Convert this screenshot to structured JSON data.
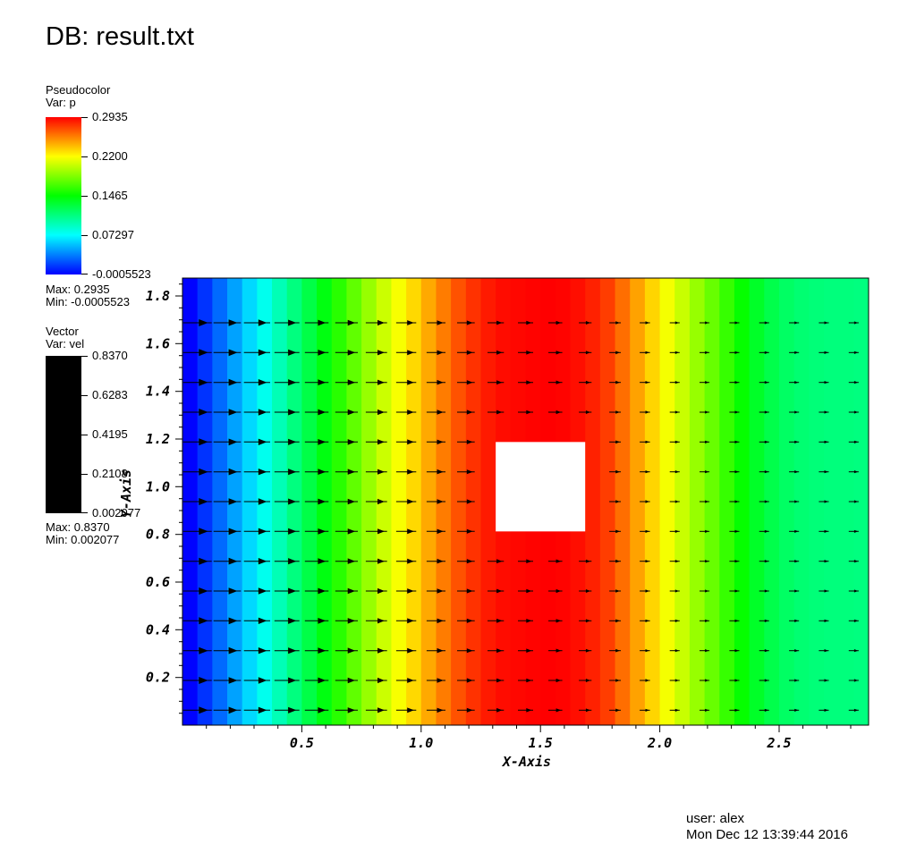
{
  "header": {
    "db_title": "DB: result.txt"
  },
  "pseudocolor_legend": {
    "plot_type": "Pseudocolor",
    "var_label": "Var: p",
    "tick_labels": [
      "0.2935",
      "0.2200",
      "0.1465",
      "0.07297",
      "-0.0005523"
    ],
    "max_label": "Max:  0.2935",
    "min_label": "Min: -0.0005523",
    "colormap": "hot"
  },
  "vector_legend": {
    "plot_type": "Vector",
    "var_label": "Var: vel",
    "tick_labels": [
      "0.8370",
      "0.6283",
      "0.4195",
      "0.2108",
      "0.002077"
    ],
    "max_label": "Max:  0.8370",
    "min_label": "Min:  0.002077",
    "bar_color": "#000000"
  },
  "footer": {
    "user": "user: alex",
    "date": "Mon Dec 12 13:39:44 2016"
  },
  "chart_data": {
    "type": "heatmap",
    "title": "",
    "xlabel": "X-Axis",
    "ylabel": "Y-Axis",
    "xlim": [
      0,
      2.875
    ],
    "ylim": [
      0,
      1.875
    ],
    "xticks": [
      0.5,
      1.0,
      1.5,
      2.0,
      2.5
    ],
    "xtick_labels": [
      "0.5",
      "1.0",
      "1.5",
      "2.0",
      "2.5"
    ],
    "yticks": [
      0.2,
      0.4,
      0.6,
      0.8,
      1.0,
      1.2,
      1.4,
      1.6,
      1.8
    ],
    "ytick_labels": [
      "0.2",
      "0.4",
      "0.6",
      "0.8",
      "1.0",
      "1.2",
      "1.4",
      "1.6",
      "1.8"
    ],
    "x_minor_step": 0.1,
    "y_minor_step": 0.05,
    "colorbar_range": [
      -0.0005523,
      0.2935
    ],
    "p_band_step": 0.125,
    "p_columns": [
      0.0,
      0.014,
      0.03,
      0.046,
      0.062,
      0.078,
      0.094,
      0.11,
      0.126,
      0.142,
      0.158,
      0.174,
      0.19,
      0.205,
      0.218,
      0.231,
      0.245,
      0.258,
      0.27,
      0.279,
      0.286,
      0.29,
      0.2915,
      0.2925,
      0.2935,
      0.2925,
      0.2895,
      0.284,
      0.276,
      0.262,
      0.247,
      0.232,
      0.217,
      0.204,
      0.19,
      0.176,
      0.162,
      0.148,
      0.135,
      0.125,
      0.118,
      0.114,
      0.112,
      0.111,
      0.111,
      0.11,
      0.108
    ],
    "obstacle": {
      "x0": 1.3125,
      "x1": 1.6875,
      "y0": 0.8125,
      "y1": 1.1875
    },
    "vector_grid": {
      "x_start": 0.0625,
      "x_step": 0.125,
      "y_start": 0.0625,
      "y_step": 0.125,
      "x_count": 23,
      "y_count": 14
    },
    "vector_range": [
      0.002077,
      0.837
    ]
  }
}
